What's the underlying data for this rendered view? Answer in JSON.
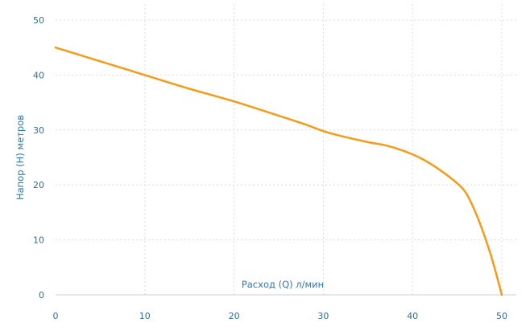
{
  "chart_data": {
    "type": "line",
    "title": "",
    "xlabel": "Расход (Q) л/мин",
    "ylabel": "Напор (H) метров",
    "xlim": [
      0,
      50
    ],
    "ylim": [
      0,
      50
    ],
    "x_ticks": [
      0,
      10,
      20,
      30,
      40,
      50
    ],
    "y_ticks": [
      0,
      10,
      20,
      30,
      40,
      50
    ],
    "x_tick_labels": [
      "0",
      "10",
      "20",
      "30",
      "40",
      "50"
    ],
    "y_tick_labels": [
      "0",
      "10",
      "20",
      "30",
      "40",
      "50"
    ],
    "grid": true,
    "legend": "none",
    "colors": {
      "curve": "#f79a17",
      "labels": "#2f79a8",
      "grid": "#dcdcdc"
    },
    "series": [
      {
        "x": [
          0,
          5,
          10,
          15,
          20,
          25,
          28,
          30,
          32,
          35,
          37,
          39,
          41,
          43,
          45,
          46,
          47,
          48,
          49,
          50
        ],
        "values": [
          45,
          42.5,
          40,
          37.5,
          35.2,
          32.6,
          31,
          29.8,
          28.9,
          27.8,
          27.2,
          26.2,
          24.8,
          22.8,
          20.3,
          18.5,
          15.2,
          11,
          6,
          0
        ]
      }
    ]
  }
}
